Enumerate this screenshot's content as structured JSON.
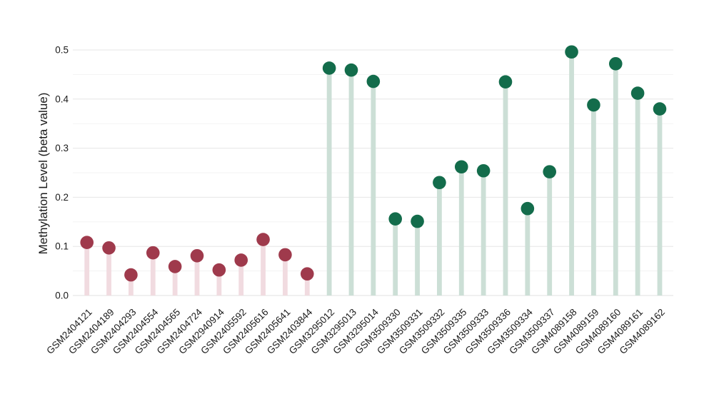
{
  "page": {
    "background": "#ffffff",
    "title": ""
  },
  "chart_data": {
    "type": "scatter",
    "subtype": "lollipop",
    "title": "",
    "xlabel": "",
    "ylabel": "Methylation Level (beta value)",
    "ylim": [
      0,
      0.5
    ],
    "ytick_labels": [
      "0.0",
      "0.1",
      "0.2",
      "0.3",
      "0.4",
      "0.5"
    ],
    "grid": "horizontal",
    "grid_minor_step": 0.05,
    "legend_position": "none",
    "categories": [
      "GSM2404121",
      "GSM2404189",
      "GSM2404293",
      "GSM2404554",
      "GSM2404565",
      "GSM2404724",
      "GSM2940914",
      "GSM2405592",
      "GSM2405616",
      "GSM2405641",
      "GSM2403844",
      "GSM3295012",
      "GSM3295013",
      "GSM3295014",
      "GSM3509330",
      "GSM3509331",
      "GSM3509332",
      "GSM3509335",
      "GSM3509333",
      "GSM3509336",
      "GSM3509334",
      "GSM3509337",
      "GSM4089158",
      "GSM4089159",
      "GSM4089160",
      "GSM4089161",
      "GSM4089162"
    ],
    "values": [
      0.108,
      0.097,
      0.042,
      0.087,
      0.059,
      0.081,
      0.052,
      0.072,
      0.114,
      0.083,
      0.044,
      0.463,
      0.459,
      0.436,
      0.156,
      0.151,
      0.23,
      0.262,
      0.254,
      0.435,
      0.177,
      0.252,
      0.496,
      0.388,
      0.472,
      0.412,
      0.38
    ],
    "point_groups": [
      "rose",
      "rose",
      "rose",
      "rose",
      "rose",
      "rose",
      "rose",
      "rose",
      "rose",
      "rose",
      "rose",
      "green",
      "green",
      "green",
      "green",
      "green",
      "green",
      "green",
      "green",
      "green",
      "green",
      "green",
      "green",
      "green",
      "green",
      "green",
      "green"
    ],
    "group_colors": {
      "rose": {
        "dot": "#9f3a4c",
        "stem": "#f1dbe0"
      },
      "green": {
        "dot": "#136c4b",
        "stem": "#ccdfd6"
      }
    },
    "style_colors": {
      "grid_major": "#e6e6e6",
      "grid_minor": "#f3f3f3",
      "baseline": "#e0e0e0",
      "text": "#1a1a1a"
    }
  }
}
